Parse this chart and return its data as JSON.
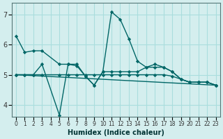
{
  "xlabel": "Humidex (Indice chaleur)",
  "bg_color": "#d4eeee",
  "grid_color": "#aadddd",
  "line_color": "#006666",
  "xlim": [
    -0.5,
    23.5
  ],
  "ylim": [
    3.6,
    7.4
  ],
  "yticks": [
    4,
    5,
    6,
    7
  ],
  "xticks": [
    0,
    1,
    2,
    3,
    4,
    5,
    6,
    7,
    8,
    9,
    10,
    11,
    12,
    13,
    14,
    15,
    16,
    17,
    18,
    19,
    20,
    21,
    22,
    23
  ],
  "series1_x": [
    0,
    1,
    2,
    3,
    5,
    6,
    7,
    8,
    9,
    10,
    11,
    12,
    13,
    14,
    15,
    16,
    17,
    18,
    19,
    20,
    21,
    22,
    23
  ],
  "series1_y": [
    6.3,
    5.75,
    5.8,
    5.8,
    5.35,
    5.35,
    5.3,
    4.95,
    4.65,
    5.1,
    7.1,
    6.85,
    6.2,
    5.45,
    5.25,
    5.35,
    5.25,
    5.1,
    4.85,
    4.75,
    4.75,
    4.75,
    4.65
  ],
  "series2_x": [
    0,
    1,
    2,
    3,
    5,
    6,
    7,
    8,
    9,
    10,
    11,
    12,
    13,
    14,
    15,
    16,
    17,
    18,
    19,
    20,
    21,
    22,
    23
  ],
  "series2_y": [
    5.0,
    5.0,
    5.0,
    5.35,
    3.65,
    5.35,
    5.35,
    4.95,
    4.65,
    5.1,
    5.1,
    5.1,
    5.1,
    5.1,
    5.25,
    5.25,
    5.25,
    5.1,
    4.85,
    4.75,
    4.75,
    4.75,
    4.65
  ],
  "series3_x": [
    0,
    1,
    2,
    3,
    5,
    6,
    7,
    8,
    9,
    10,
    11,
    12,
    13,
    14,
    15,
    16,
    17,
    18,
    19,
    20,
    21,
    22,
    23
  ],
  "series3_y": [
    5.0,
    5.0,
    5.0,
    5.0,
    5.0,
    5.0,
    5.0,
    5.0,
    5.0,
    5.0,
    5.0,
    5.0,
    5.0,
    5.0,
    5.0,
    5.0,
    5.0,
    4.95,
    4.85,
    4.75,
    4.75,
    4.75,
    4.65
  ],
  "series4_x": [
    0,
    23
  ],
  "series4_y": [
    5.0,
    4.65
  ]
}
